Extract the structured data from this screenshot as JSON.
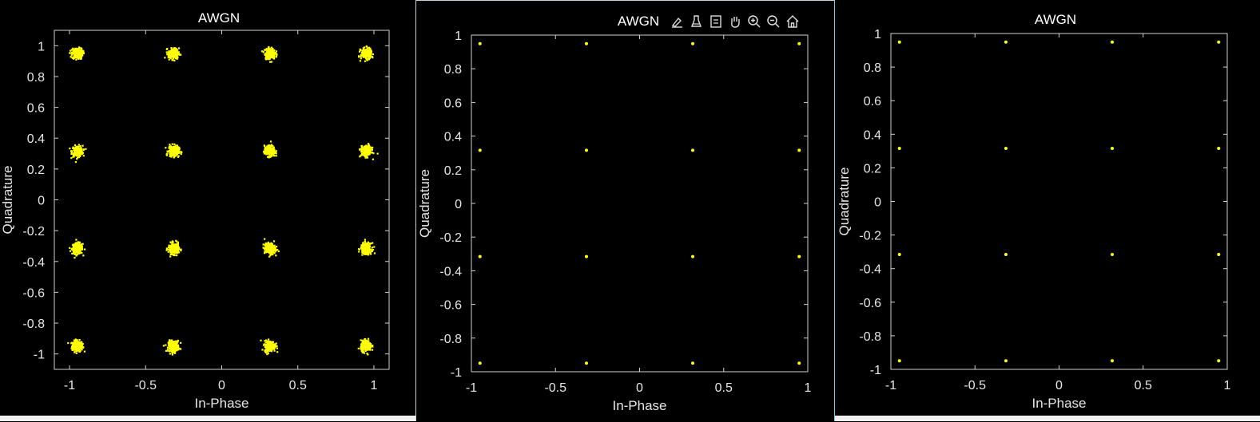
{
  "colors": {
    "background": "#000000",
    "axes": "#d0d0d0",
    "text": "#e6e6e6",
    "marker": "#ffff00"
  },
  "toolbar": {
    "icons": [
      "brush-icon",
      "data-tips-icon",
      "legend-icon",
      "pan-icon",
      "zoom-in-icon",
      "zoom-out-icon",
      "home-icon"
    ]
  },
  "chart_data": [
    {
      "type": "scatter",
      "title": "AWGN",
      "xlabel": "In-Phase",
      "ylabel": "Quadrature",
      "xlim": [
        -1.1,
        1.1
      ],
      "ylim": [
        -1.1,
        1.1
      ],
      "xticks": [
        "-1",
        "-0.5",
        "0",
        "0.5",
        "1"
      ],
      "xtick_values": [
        -1,
        -0.5,
        0,
        0.5,
        1
      ],
      "yticks": [
        "1",
        "0.8",
        "0.6",
        "0.4",
        "0.2",
        "0",
        "-0.2",
        "-0.4",
        "-0.6",
        "-0.8",
        "-1"
      ],
      "ytick_values": [
        1,
        0.8,
        0.6,
        0.4,
        0.2,
        0,
        -0.2,
        -0.4,
        -0.6,
        -0.8,
        -1
      ],
      "grid": false,
      "marker_color": "#ffff00",
      "noise_spread": 0.035,
      "constellation_levels": [
        -0.949,
        -0.316,
        0.316,
        0.949
      ]
    },
    {
      "type": "scatter",
      "title": "AWGN",
      "xlabel": "In-Phase",
      "ylabel": "Quadrature",
      "xlim": [
        -1,
        1
      ],
      "ylim": [
        -1,
        1
      ],
      "xticks": [
        "-1",
        "-0.5",
        "0",
        "0.5",
        "1"
      ],
      "xtick_values": [
        -1,
        -0.5,
        0,
        0.5,
        1
      ],
      "yticks": [
        "1",
        "0.8",
        "0.6",
        "0.4",
        "0.2",
        "0",
        "-0.2",
        "-0.4",
        "-0.6",
        "-0.8",
        "-1"
      ],
      "ytick_values": [
        1,
        0.8,
        0.6,
        0.4,
        0.2,
        0,
        -0.2,
        -0.4,
        -0.6,
        -0.8,
        -1
      ],
      "grid": false,
      "marker_color": "#ffff00",
      "noise_spread": 0,
      "constellation_levels": [
        -0.949,
        -0.316,
        0.316,
        0.949
      ]
    },
    {
      "type": "scatter",
      "title": "AWGN",
      "xlabel": "In-Phase",
      "ylabel": "Quadrature",
      "xlim": [
        -1,
        1
      ],
      "ylim": [
        -1,
        1
      ],
      "xticks": [
        "-1",
        "-0.5",
        "0",
        "0.5",
        "1"
      ],
      "xtick_values": [
        -1,
        -0.5,
        0,
        0.5,
        1
      ],
      "yticks": [
        "1",
        "0.8",
        "0.6",
        "0.4",
        "0.2",
        "0",
        "-0.2",
        "-0.4",
        "-0.6",
        "-0.8",
        "-1"
      ],
      "ytick_values": [
        1,
        0.8,
        0.6,
        0.4,
        0.2,
        0,
        -0.2,
        -0.4,
        -0.6,
        -0.8,
        -1
      ],
      "grid": false,
      "marker_color": "#ffff00",
      "noise_spread": 0,
      "constellation_levels": [
        -0.949,
        -0.316,
        0.316,
        0.949
      ]
    }
  ]
}
